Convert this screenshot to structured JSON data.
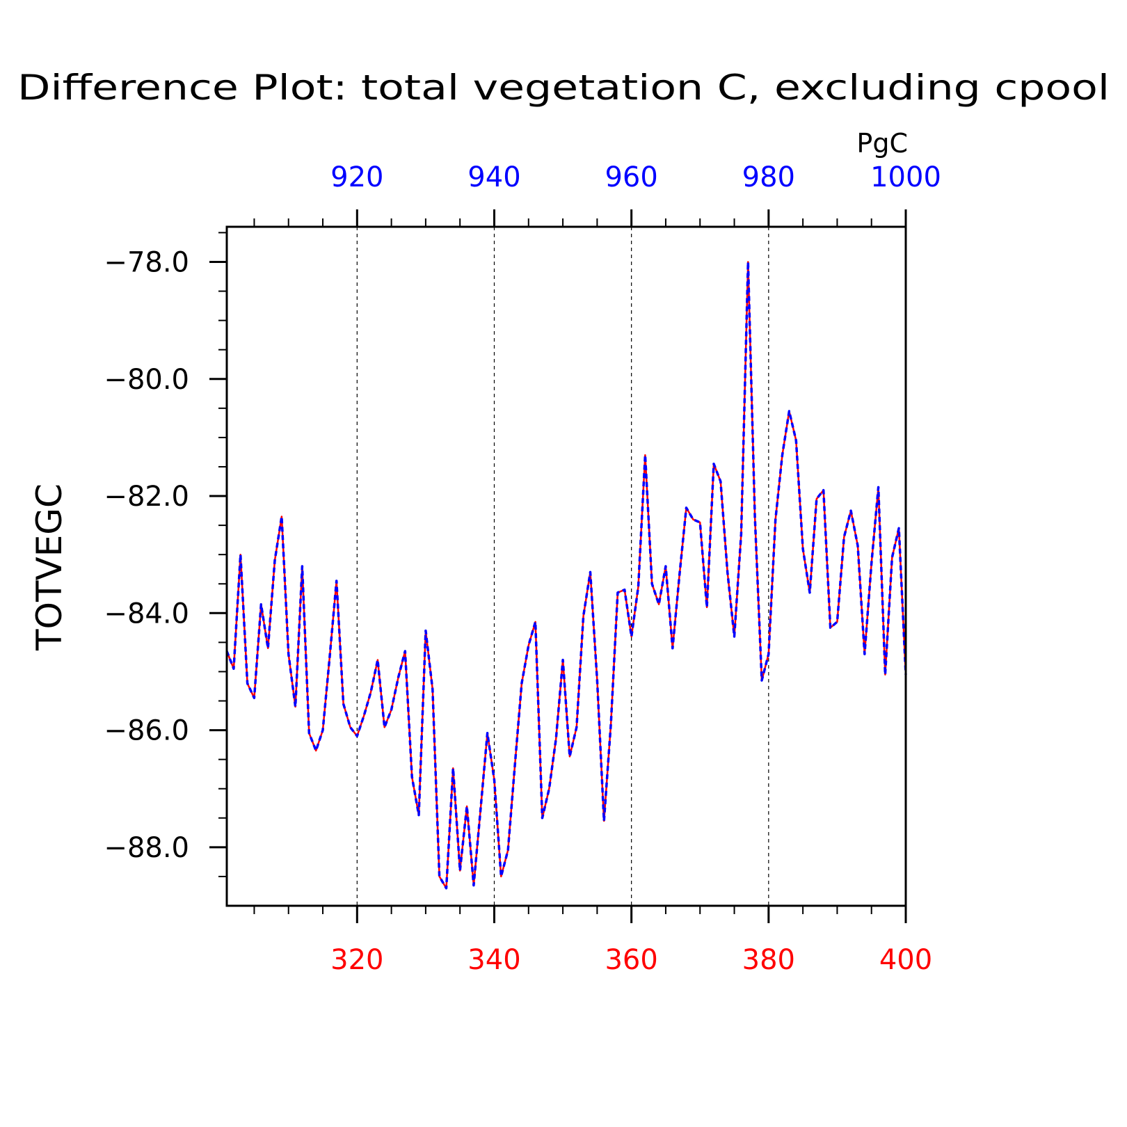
{
  "chart_data": {
    "type": "line",
    "title": "Difference Plot: total vegetation C, excluding cpool",
    "units": "PgC",
    "ylabel": "TOTVEGC",
    "xlabel": "",
    "xlim_bottom": [
      301,
      400
    ],
    "xlim_top": [
      901,
      1000
    ],
    "ylim": [
      -89.0,
      -77.4
    ],
    "yticks": [
      "-78.0",
      "-80.0",
      "-82.0",
      "-84.0",
      "-86.0",
      "-88.0"
    ],
    "ytick_values": [
      -78,
      -80,
      -82,
      -84,
      -86,
      -88
    ],
    "xticks_bottom": [
      "320",
      "340",
      "360",
      "380",
      "400"
    ],
    "xtick_values_bottom": [
      320,
      340,
      360,
      380,
      400
    ],
    "xticks_top": [
      "920",
      "940",
      "960",
      "980",
      "1000"
    ],
    "xtick_values_top": [
      920,
      940,
      960,
      980,
      1000
    ],
    "grid_x": true,
    "colors": {
      "series1": "#ff0000",
      "series2": "#0000ff",
      "bottom_axis": "#ff0000",
      "top_axis": "#0000ff"
    },
    "x": [
      301,
      302,
      303,
      304,
      305,
      306,
      307,
      308,
      309,
      310,
      311,
      312,
      313,
      314,
      315,
      316,
      317,
      318,
      319,
      320,
      321,
      322,
      323,
      324,
      325,
      326,
      327,
      328,
      329,
      330,
      331,
      332,
      333,
      334,
      335,
      336,
      337,
      338,
      339,
      340,
      341,
      342,
      343,
      344,
      345,
      346,
      347,
      348,
      349,
      350,
      351,
      352,
      353,
      354,
      355,
      356,
      357,
      358,
      359,
      360,
      361,
      362,
      363,
      364,
      365,
      366,
      367,
      368,
      369,
      370,
      371,
      372,
      373,
      374,
      375,
      376,
      377,
      378,
      379,
      380,
      381,
      382,
      383,
      384,
      385,
      386,
      387,
      388,
      389,
      390,
      391,
      392,
      393,
      394,
      395,
      396,
      397,
      398,
      399,
      400
    ],
    "series": [
      {
        "values": [
          -84.65,
          -84.95,
          -83.0,
          -85.2,
          -85.45,
          -83.85,
          -84.6,
          -83.1,
          -82.35,
          -84.7,
          -85.6,
          -83.2,
          -86.05,
          -86.35,
          -86.0,
          -84.75,
          -83.45,
          -85.55,
          -85.95,
          -86.1,
          -85.75,
          -85.35,
          -84.8,
          -85.95,
          -85.65,
          -85.1,
          -84.65,
          -86.8,
          -87.45,
          -84.3,
          -85.3,
          -88.5,
          -88.7,
          -86.65,
          -88.4,
          -87.3,
          -88.65,
          -87.35,
          -86.05,
          -86.85,
          -88.5,
          -88.05,
          -86.6,
          -85.2,
          -84.55,
          -84.15,
          -87.5,
          -87.0,
          -86.15,
          -84.8,
          -86.45,
          -85.95,
          -84.05,
          -83.3,
          -85.15,
          -87.55,
          -85.9,
          -83.65,
          -83.6,
          -84.4,
          -83.55,
          -81.3,
          -83.5,
          -83.85,
          -83.2,
          -84.6,
          -83.35,
          -82.2,
          -82.4,
          -82.45,
          -83.9,
          -81.45,
          -81.75,
          -83.3,
          -84.4,
          -82.65,
          -78.0,
          -82.35,
          -85.15,
          -84.7,
          -82.4,
          -81.3,
          -80.55,
          -81.05,
          -82.9,
          -83.65,
          -82.05,
          -81.9,
          -84.25,
          -84.15,
          -82.7,
          -82.25,
          -82.85,
          -84.7,
          -83.15,
          -81.85,
          -85.05,
          -83.05,
          -82.55,
          -85.05
        ]
      },
      {
        "values": [
          -84.65,
          -84.95,
          -83.0,
          -85.2,
          -85.45,
          -83.85,
          -84.6,
          -83.1,
          -82.35,
          -84.7,
          -85.6,
          -83.2,
          -86.05,
          -86.35,
          -86.0,
          -84.75,
          -83.45,
          -85.55,
          -85.95,
          -86.1,
          -85.75,
          -85.35,
          -84.8,
          -85.95,
          -85.65,
          -85.1,
          -84.65,
          -86.8,
          -87.45,
          -84.3,
          -85.3,
          -88.5,
          -88.7,
          -86.65,
          -88.4,
          -87.3,
          -88.65,
          -87.35,
          -86.05,
          -86.85,
          -88.5,
          -88.05,
          -86.6,
          -85.2,
          -84.55,
          -84.15,
          -87.5,
          -87.0,
          -86.15,
          -84.8,
          -86.45,
          -85.95,
          -84.05,
          -83.3,
          -85.15,
          -87.55,
          -85.9,
          -83.65,
          -83.6,
          -84.4,
          -83.55,
          -81.3,
          -83.5,
          -83.85,
          -83.2,
          -84.6,
          -83.35,
          -82.2,
          -82.4,
          -82.45,
          -83.9,
          -81.45,
          -81.75,
          -83.3,
          -84.4,
          -82.65,
          -78.0,
          -82.35,
          -85.15,
          -84.7,
          -82.4,
          -81.3,
          -80.55,
          -81.05,
          -82.9,
          -83.65,
          -82.05,
          -81.9,
          -84.25,
          -84.15,
          -82.7,
          -82.25,
          -82.85,
          -84.7,
          -83.15,
          -81.85,
          -85.05,
          -83.05,
          -82.55,
          -85.05
        ]
      }
    ]
  }
}
